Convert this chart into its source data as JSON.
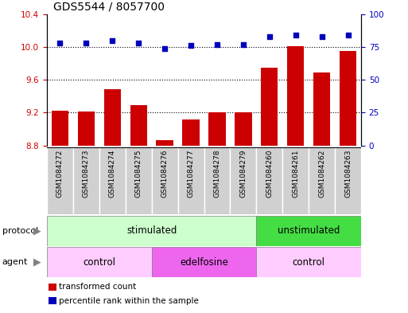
{
  "title": "GDS5544 / 8057700",
  "samples": [
    "GSM1084272",
    "GSM1084273",
    "GSM1084274",
    "GSM1084275",
    "GSM1084276",
    "GSM1084277",
    "GSM1084278",
    "GSM1084279",
    "GSM1084260",
    "GSM1084261",
    "GSM1084262",
    "GSM1084263"
  ],
  "bar_values": [
    9.22,
    9.21,
    9.49,
    9.29,
    8.87,
    9.12,
    9.2,
    9.2,
    9.75,
    10.01,
    9.69,
    9.95
  ],
  "dot_values": [
    78,
    78,
    80,
    78,
    74,
    76,
    77,
    77,
    83,
    84,
    83,
    84
  ],
  "ylim_left": [
    8.8,
    10.4
  ],
  "ylim_right": [
    0,
    100
  ],
  "yticks_left": [
    8.8,
    9.2,
    9.6,
    10.0,
    10.4
  ],
  "yticks_right": [
    0,
    25,
    50,
    75,
    100
  ],
  "bar_color": "#cc0000",
  "dot_color": "#0000bb",
  "protocol_groups": [
    {
      "label": "stimulated",
      "start": 0,
      "end": 7,
      "color": "#ccffcc"
    },
    {
      "label": "unstimulated",
      "start": 8,
      "end": 11,
      "color": "#44dd44"
    }
  ],
  "agent_groups": [
    {
      "label": "control",
      "start": 0,
      "end": 3,
      "color": "#ffccff"
    },
    {
      "label": "edelfosine",
      "start": 4,
      "end": 7,
      "color": "#ee66ee"
    },
    {
      "label": "control",
      "start": 8,
      "end": 11,
      "color": "#ffccff"
    }
  ],
  "legend_items": [
    {
      "label": "transformed count",
      "color": "#cc0000"
    },
    {
      "label": "percentile rank within the sample",
      "color": "#0000bb"
    }
  ],
  "grid_lines": [
    9.2,
    9.6,
    10.0
  ],
  "title_fontsize": 10,
  "tick_fontsize": 7.5,
  "label_fontsize": 6.5,
  "bar_width": 0.65,
  "fig_width": 5.13,
  "fig_height": 3.93,
  "fig_dpi": 100
}
